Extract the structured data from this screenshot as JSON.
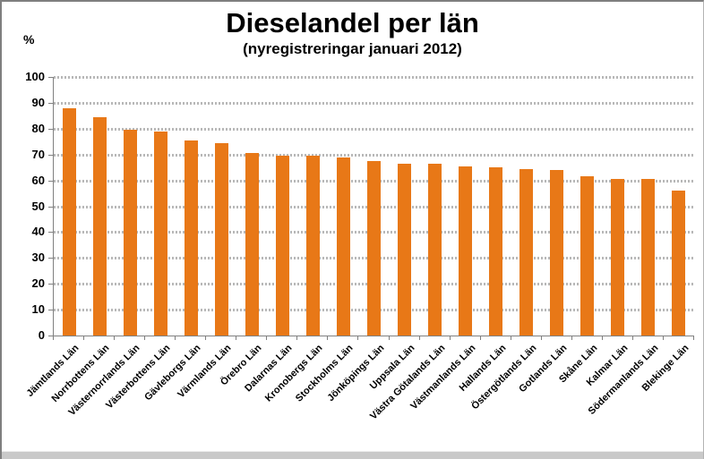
{
  "chart_data": {
    "type": "bar",
    "title": "Dieselandel per län",
    "subtitle": "(nyregistreringar januari 2012)",
    "ylabel": "%",
    "xlabel": "",
    "ylim": [
      0,
      100
    ],
    "ytick_interval": 10,
    "grid": "horizontal-dashed",
    "legend": "none",
    "categories": [
      "Jämtlands Län",
      "Norrbottens Län",
      "Västernorrlands Län",
      "Västerbottens Län",
      "Gävleborgs Län",
      "Värmlands Län",
      "Örebro Län",
      "Dalarnas Län",
      "Kronobergs Län",
      "Stockholms Län",
      "Jönköpings Län",
      "Uppsala Län",
      "Västra Götalands Län",
      "Västmanlands Län",
      "Hallands Län",
      "Östergötlands Län",
      "Gotlands Län",
      "Skåne Län",
      "Kalmar Län",
      "Södermanlands Län",
      "Blekinge Län"
    ],
    "values": [
      88,
      84.5,
      79.5,
      79,
      75.5,
      74.5,
      70.5,
      69.5,
      69.5,
      69,
      67.5,
      66.5,
      66.5,
      65.5,
      65,
      64.5,
      64,
      61.5,
      60.5,
      60.5,
      56
    ],
    "colors": {
      "bar": "#E87817",
      "grid": "#B8B8B8",
      "axis": "#808080",
      "text": "#000000",
      "background": "#FFFFFF",
      "frame_strip": "#C9C9C9"
    }
  }
}
